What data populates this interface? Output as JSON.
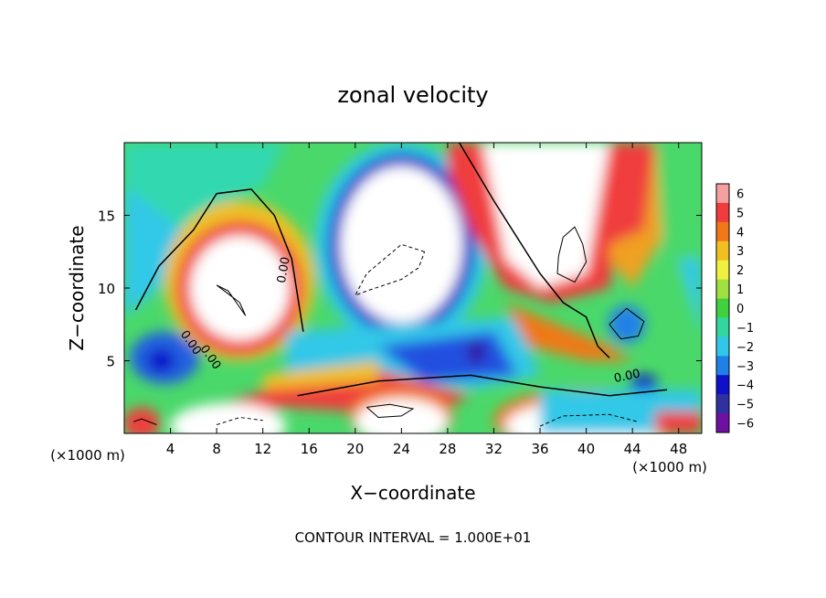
{
  "chart_data": {
    "type": "heatmap",
    "title": "zonal velocity",
    "xlabel": "X−coordinate",
    "ylabel": "Z−coordinate",
    "x_units": "(×1000 m)",
    "footer": "CONTOUR INTERVAL = 1.000E+01",
    "xlim": [
      0,
      50
    ],
    "ylim": [
      0,
      20
    ],
    "x_ticks": [
      "4",
      "8",
      "12",
      "16",
      "20",
      "24",
      "28",
      "32",
      "36",
      "40",
      "44",
      "48"
    ],
    "y_ticks": [
      "5",
      "10",
      "15"
    ],
    "colorbar": {
      "levels": [
        "6",
        "5",
        "4",
        "3",
        "2",
        "1",
        "0",
        "−1",
        "−2",
        "−3",
        "−4",
        "−5",
        "−6"
      ],
      "range": [
        -6,
        6
      ]
    },
    "contour_labels": [
      "0.00",
      "0.00",
      "0.00",
      "0.00"
    ],
    "grid": false,
    "legend": "colorbar-right"
  }
}
